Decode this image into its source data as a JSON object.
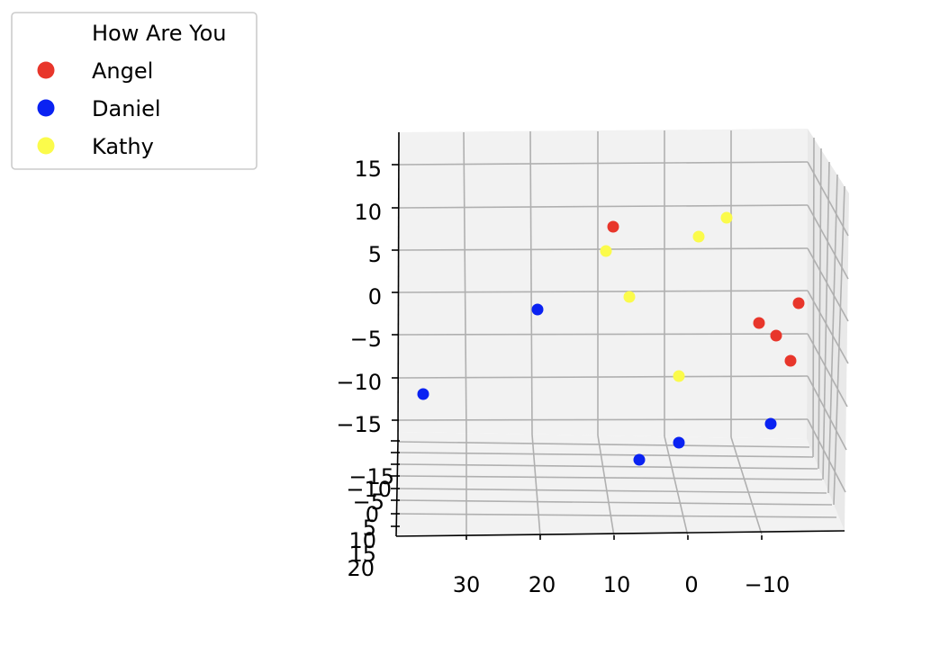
{
  "chart_data": {
    "type": "scatter",
    "subtype": "3d",
    "legend": {
      "title": "How Are You",
      "placement": "upper-left"
    },
    "series": [
      {
        "name": "Angel",
        "color": "#e8362b"
      },
      {
        "name": "Daniel",
        "color": "#0a22f2"
      },
      {
        "name": "Kathy",
        "color": "#fbfb4b"
      }
    ],
    "axes": {
      "x_ticks": [
        "30",
        "20",
        "10",
        "0",
        "−10"
      ],
      "y_ticks": [
        "−15",
        "−10",
        "−5",
        "0",
        "5",
        "10",
        "15",
        "20"
      ],
      "z_ticks": [
        "15",
        "10",
        "5",
        "0",
        "−5",
        "−10",
        "−15"
      ],
      "z_range": [
        -18,
        19
      ],
      "grid": true
    },
    "points": [
      {
        "series": "Angel",
        "z": 7.7
      },
      {
        "series": "Angel",
        "z": -1.2
      },
      {
        "series": "Angel",
        "z": -3.5
      },
      {
        "series": "Angel",
        "z": -5
      },
      {
        "series": "Angel",
        "z": -7.9
      },
      {
        "series": "Daniel",
        "z": -2
      },
      {
        "series": "Daniel",
        "z": -12
      },
      {
        "series": "Daniel",
        "z": -15.5
      },
      {
        "series": "Daniel",
        "z": -18
      },
      {
        "series": "Daniel",
        "z": -19.5
      },
      {
        "series": "Kathy",
        "z": 8.8
      },
      {
        "series": "Kathy",
        "z": 6.5
      },
      {
        "series": "Kathy",
        "z": 5
      },
      {
        "series": "Kathy",
        "z": -0.5
      },
      {
        "series": "Kathy",
        "z": -9.7
      }
    ]
  }
}
